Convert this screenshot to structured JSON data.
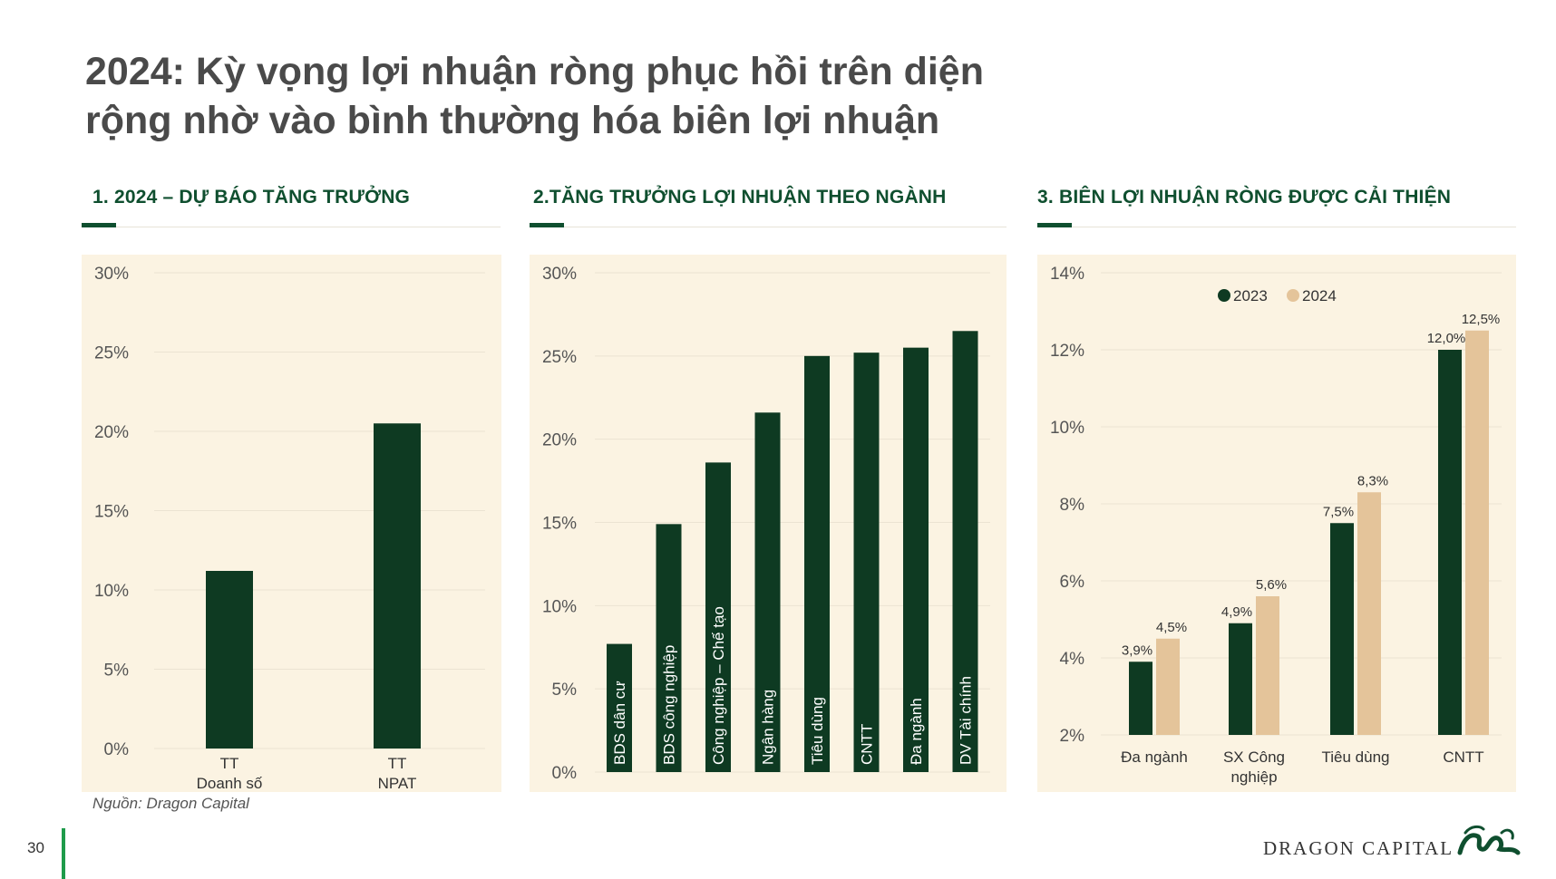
{
  "title": {
    "line1": "2024: Kỳ vọng lợi nhuận ròng phục hồi trên diện",
    "line2": "rộng nhờ vào bình thường hóa biên lợi nhuận"
  },
  "sections": {
    "s1": "1. 2024 – DỰ BÁO TĂNG TRƯỞNG",
    "s2": "2.TĂNG TRƯỞNG LỢI NHUẬN THEO NGÀNH",
    "s3": "3. BIÊN LỢI NHUẬN RÒNG ĐƯỢC CẢI THIỆN"
  },
  "source": "Nguồn: Dragon Capital",
  "page_number": "30",
  "brand": "DRAGON CAPITAL",
  "colors": {
    "dark_green": "#0e3a22",
    "tan": "#e4c49a",
    "panel_bg": "#fbf3e2",
    "accent": "#0f4f2f"
  },
  "chart_data": [
    {
      "type": "bar",
      "categories": [
        [
          "TT",
          "Doanh số"
        ],
        [
          "TT",
          "NPAT"
        ]
      ],
      "values": [
        11.2,
        20.5
      ],
      "yticks": [
        "30%",
        "25%",
        "20%",
        "15%",
        "10%",
        "5%",
        "0%"
      ],
      "ylim": [
        0,
        30
      ],
      "grid": true
    },
    {
      "type": "bar",
      "categories": [
        "BDS dân cư",
        "BDS công nghiệp",
        "Công nghiệp – Chế tạo",
        "Ngân hàng",
        "Tiêu dùng",
        "CNTT",
        "Đa ngành",
        "DV Tài chính"
      ],
      "values": [
        7.7,
        14.9,
        18.6,
        21.6,
        25.0,
        25.2,
        25.5,
        26.5
      ],
      "yticks": [
        "30%",
        "25%",
        "20%",
        "15%",
        "10%",
        "5%",
        "0%"
      ],
      "ylim": [
        0,
        30
      ],
      "grid": true
    },
    {
      "type": "bar",
      "categories": [
        [
          "Đa ngành"
        ],
        [
          "SX Công",
          "nghiệp"
        ],
        [
          "Tiêu dùng"
        ],
        [
          "CNTT"
        ]
      ],
      "series": [
        {
          "name": "2023",
          "values": [
            3.9,
            4.9,
            7.5,
            12.0
          ],
          "labels": [
            "3,9%",
            "4,9%",
            "7,5%",
            "12,0%"
          ]
        },
        {
          "name": "2024",
          "values": [
            4.5,
            5.6,
            8.3,
            12.5
          ],
          "labels": [
            "4,5%",
            "5,6%",
            "8,3%",
            "12,5%"
          ]
        }
      ],
      "yticks": [
        "14%",
        "12%",
        "10%",
        "8%",
        "6%",
        "4%",
        "2%"
      ],
      "ylim": [
        2,
        14
      ],
      "grid": true,
      "legend": "top"
    }
  ]
}
